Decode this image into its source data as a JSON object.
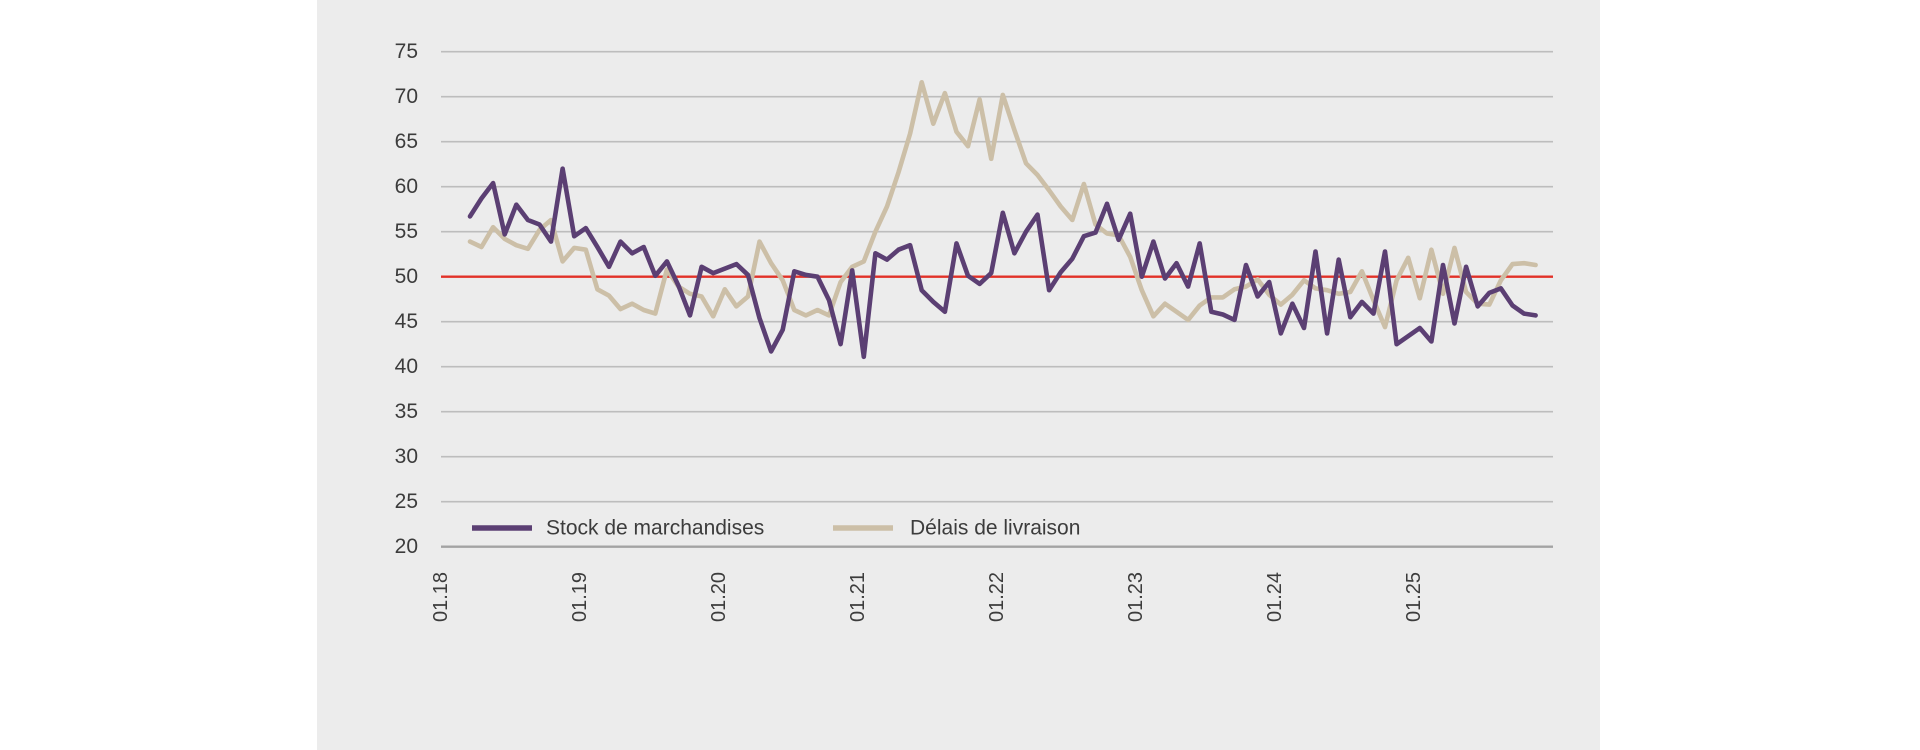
{
  "chart_data": {
    "type": "line",
    "title": "",
    "xlabel": "",
    "ylabel": "",
    "grid": true,
    "legend_position": "bottom-left",
    "y_tick_values": [
      75,
      70,
      65,
      60,
      55,
      50,
      45,
      40,
      35,
      30,
      25,
      20
    ],
    "ylim": [
      20,
      77
    ],
    "x_tick_labels": [
      "01.18",
      "01.19",
      "01.20",
      "01.21",
      "01.22",
      "01.23",
      "01.24",
      "01.25"
    ],
    "x_axis_span_months": 96,
    "data_start": "03.2018",
    "data_end": "11.2025",
    "reference_line": {
      "value": 50,
      "color": "#e23127"
    },
    "colors": {
      "panel_background": "#ececec",
      "page_background": "#ffffff",
      "gridline": "#bdbdbd",
      "axis_line": "#a3a3a3",
      "label_text": "#3c3c3c"
    },
    "series": [
      {
        "name": "Stock de marchandises",
        "color": "#5b3f73",
        "values": [
          56.7,
          58.7,
          60.4,
          54.7,
          58.0,
          56.3,
          55.8,
          53.9,
          62.0,
          54.5,
          55.4,
          53.3,
          51.1,
          53.9,
          52.6,
          53.3,
          50.1,
          51.7,
          49.0,
          45.7,
          51.1,
          50.4,
          50.9,
          51.4,
          50.2,
          45.4,
          41.7,
          44.1,
          50.6,
          50.2,
          50.0,
          47.4,
          42.5,
          50.7,
          41.1,
          52.6,
          51.9,
          53.0,
          53.5,
          48.5,
          47.2,
          46.1,
          53.7,
          50.1,
          49.2,
          50.4,
          57.1,
          52.6,
          55.0,
          56.9,
          48.5,
          50.5,
          52.0,
          54.5,
          54.9,
          58.1,
          54.1,
          57.0,
          50.0,
          53.9,
          49.8,
          51.5,
          48.9,
          53.7,
          46.1,
          45.8,
          45.2,
          51.3,
          47.8,
          49.4,
          43.7,
          47.0,
          44.3,
          52.8,
          43.7,
          51.9,
          45.5,
          47.2,
          45.9,
          52.8,
          42.5,
          43.4,
          44.3,
          42.8,
          51.3,
          44.8,
          51.1,
          46.7,
          48.2,
          48.7,
          46.8,
          45.9,
          45.7
        ]
      },
      {
        "name": "Délais de livraison",
        "color": "#ccbfa7",
        "values": [
          53.9,
          53.3,
          55.5,
          54.2,
          53.5,
          53.1,
          55.2,
          56.3,
          51.7,
          53.2,
          53.0,
          48.6,
          47.9,
          46.4,
          47.0,
          46.3,
          45.9,
          50.8,
          48.9,
          48.1,
          47.8,
          45.6,
          48.6,
          46.7,
          47.8,
          53.9,
          51.5,
          49.6,
          46.3,
          45.7,
          46.3,
          45.7,
          49.4,
          51.1,
          51.7,
          55.0,
          57.8,
          61.6,
          65.9,
          71.6,
          67.0,
          70.4,
          66.1,
          64.5,
          69.7,
          63.1,
          70.2,
          66.3,
          62.6,
          61.3,
          59.6,
          57.8,
          56.3,
          60.3,
          55.8,
          54.8,
          54.6,
          52.2,
          48.5,
          45.6,
          47.0,
          46.1,
          45.2,
          46.8,
          47.7,
          47.7,
          48.6,
          48.9,
          49.7,
          48.0,
          46.9,
          48.0,
          49.6,
          48.7,
          48.5,
          48.1,
          48.3,
          50.6,
          47.4,
          44.4,
          49.6,
          52.1,
          47.6,
          53.0,
          48.1,
          53.2,
          48.3,
          47.0,
          46.9,
          49.6,
          51.4,
          51.5,
          51.3
        ]
      }
    ]
  }
}
